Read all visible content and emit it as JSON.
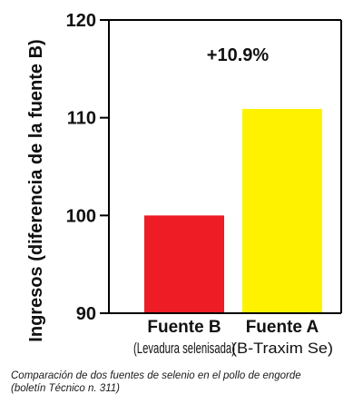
{
  "chart_data": {
    "type": "bar",
    "categories": [
      "Fuente B",
      "Fuente A"
    ],
    "category_sublabels": [
      "(Levadura selenisada)",
      "(B-Traxim Se)"
    ],
    "values": [
      100,
      110.9
    ],
    "bar_colors": [
      "#ee1c25",
      "#fff200"
    ],
    "ylabel": "Ingresos (diferencia de la fuente B)",
    "ylim": [
      90,
      120
    ],
    "yticks": [
      90,
      100,
      110,
      120
    ],
    "annotation": "+10.9%",
    "grid": false
  },
  "caption": {
    "line1": "Comparación de dos fuentes de selenio en el pollo de engorde",
    "line2": "(boletín Técnico n. 311)"
  }
}
